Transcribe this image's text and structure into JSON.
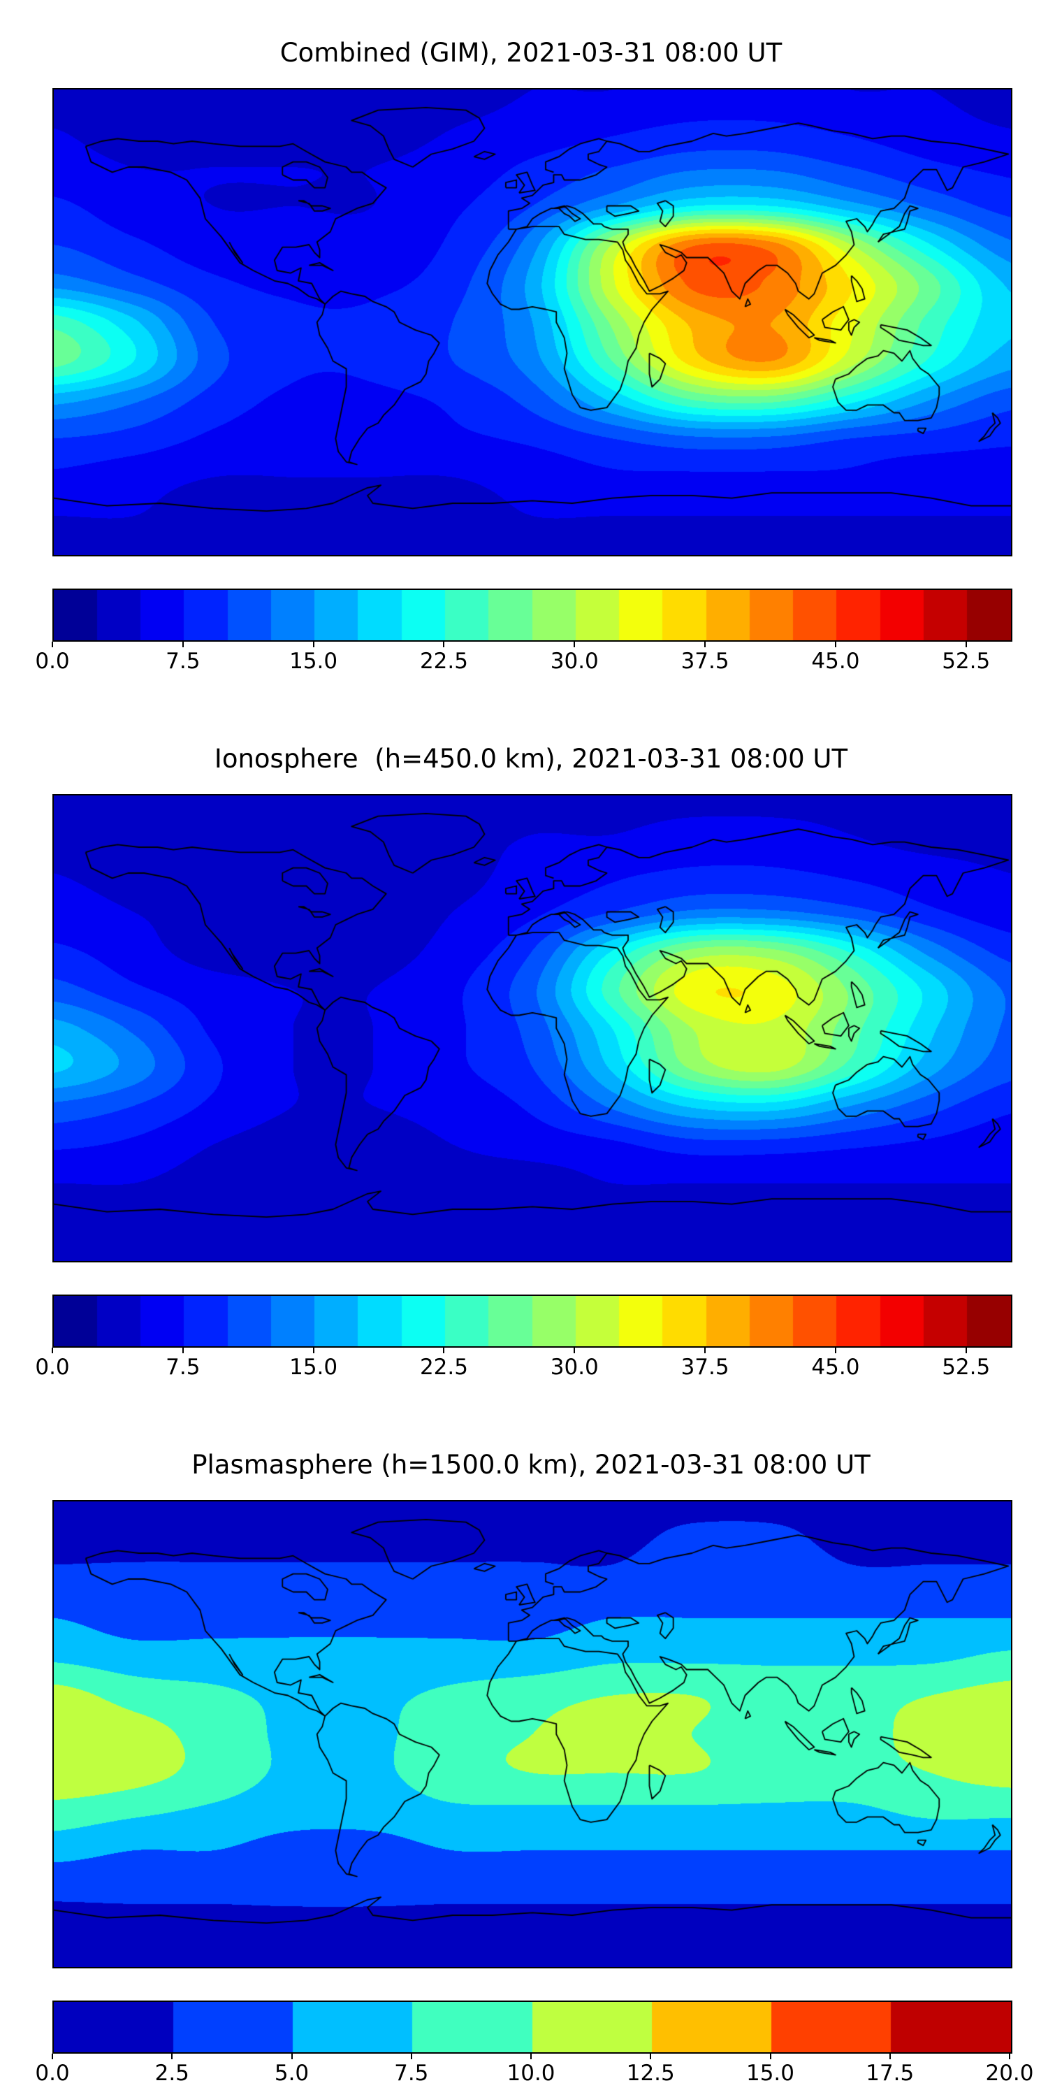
{
  "figure": {
    "background": "#ffffff",
    "colormap": "jet",
    "border_color": "#000000"
  },
  "chart_data": [
    {
      "type": "heatmap",
      "title": "Combined (GIM), 2021-03-31 08:00 UT",
      "projection": "equirectangular-world-map-with-coastlines",
      "lon": [
        -180,
        -150,
        -120,
        -90,
        -60,
        -30,
        0,
        30,
        60,
        90,
        120,
        150,
        180
      ],
      "lat": [
        90,
        75,
        60,
        45,
        30,
        15,
        0,
        -15,
        -30,
        -45,
        -60,
        -75,
        -90
      ],
      "values": [
        [
          4,
          4,
          4,
          4,
          4,
          4,
          5,
          5,
          6,
          6,
          5,
          5,
          4
        ],
        [
          5,
          4,
          4,
          4,
          4,
          5,
          6,
          7,
          8,
          8,
          7,
          6,
          5
        ],
        [
          6,
          5,
          5,
          5,
          5,
          6,
          8,
          10,
          12,
          12,
          10,
          8,
          7
        ],
        [
          8,
          6,
          5,
          5,
          5,
          7,
          10,
          15,
          20,
          20,
          16,
          12,
          9
        ],
        [
          10,
          8,
          6,
          6,
          6,
          8,
          14,
          30,
          42,
          41,
          30,
          20,
          13
        ],
        [
          14,
          11,
          8,
          7,
          7,
          9,
          16,
          32,
          43,
          42,
          35,
          26,
          17
        ],
        [
          24,
          18,
          10,
          8,
          8,
          10,
          15,
          28,
          38,
          40,
          33,
          24,
          18
        ],
        [
          26,
          20,
          11,
          8,
          8,
          10,
          14,
          25,
          36,
          40,
          31,
          22,
          16
        ],
        [
          16,
          13,
          9,
          7,
          7,
          8,
          11,
          18,
          25,
          26,
          21,
          15,
          11
        ],
        [
          10,
          9,
          7,
          6,
          6,
          7,
          8,
          10,
          12,
          12,
          10,
          9,
          8
        ],
        [
          7,
          6,
          5,
          5,
          5,
          5,
          6,
          7,
          7,
          7,
          7,
          6,
          6
        ],
        [
          5,
          5,
          4,
          4,
          4,
          4,
          5,
          5,
          5,
          5,
          5,
          5,
          5
        ],
        [
          4,
          4,
          4,
          4,
          4,
          4,
          4,
          4,
          4,
          4,
          4,
          4,
          4
        ]
      ],
      "levels": {
        "min": 0,
        "max": 55,
        "step": 2.5
      },
      "colorbar_ticks": [
        "0.0",
        "7.5",
        "15.0",
        "22.5",
        "30.0",
        "37.5",
        "45.0",
        "52.5"
      ],
      "colormap": "jet"
    },
    {
      "type": "heatmap",
      "title": "Ionosphere  (h=450.0 km), 2021-03-31 08:00 UT",
      "projection": "equirectangular-world-map-with-coastlines",
      "lon": [
        -180,
        -150,
        -120,
        -90,
        -60,
        -30,
        0,
        30,
        60,
        90,
        120,
        150,
        180
      ],
      "lat": [
        90,
        75,
        60,
        45,
        30,
        15,
        0,
        -15,
        -30,
        -45,
        -60,
        -75,
        -90
      ],
      "values": [
        [
          3,
          3,
          3,
          3,
          3,
          3,
          4,
          4,
          4,
          4,
          4,
          3,
          3
        ],
        [
          4,
          3,
          3,
          3,
          3,
          4,
          5,
          5,
          6,
          6,
          5,
          4,
          4
        ],
        [
          5,
          4,
          3,
          3,
          3,
          4,
          6,
          7,
          8,
          8,
          7,
          6,
          5
        ],
        [
          6,
          5,
          4,
          3,
          3,
          5,
          7,
          10,
          13,
          13,
          11,
          8,
          6
        ],
        [
          8,
          6,
          4,
          4,
          4,
          6,
          10,
          20,
          28,
          28,
          22,
          14,
          9
        ],
        [
          11,
          8,
          6,
          5,
          5,
          7,
          12,
          24,
          34,
          34,
          27,
          19,
          12
        ],
        [
          16,
          12,
          7,
          5,
          5,
          7,
          11,
          20,
          30,
          32,
          26,
          18,
          12
        ],
        [
          18,
          14,
          8,
          5,
          5,
          7,
          10,
          18,
          28,
          31,
          24,
          16,
          11
        ],
        [
          12,
          10,
          7,
          5,
          5,
          6,
          8,
          13,
          18,
          19,
          15,
          11,
          8
        ],
        [
          8,
          7,
          5,
          4,
          4,
          5,
          6,
          7,
          9,
          9,
          8,
          7,
          6
        ],
        [
          5,
          5,
          4,
          4,
          4,
          4,
          4,
          5,
          5,
          5,
          5,
          5,
          5
        ],
        [
          4,
          4,
          3,
          3,
          3,
          3,
          4,
          4,
          4,
          4,
          4,
          4,
          4
        ],
        [
          3,
          3,
          3,
          3,
          3,
          3,
          3,
          3,
          3,
          3,
          3,
          3,
          3
        ]
      ],
      "levels": {
        "min": 0,
        "max": 55,
        "step": 2.5
      },
      "colorbar_ticks": [
        "0.0",
        "7.5",
        "15.0",
        "22.5",
        "30.0",
        "37.5",
        "45.0",
        "52.5"
      ],
      "colormap": "jet"
    },
    {
      "type": "heatmap",
      "title": "Plasmasphere (h=1500.0 km), 2021-03-31 08:00 UT",
      "projection": "equirectangular-world-map-with-coastlines",
      "lon": [
        -180,
        -150,
        -120,
        -90,
        -60,
        -30,
        0,
        30,
        60,
        90,
        120,
        150,
        180
      ],
      "lat": [
        90,
        75,
        60,
        45,
        30,
        15,
        0,
        -15,
        -30,
        -45,
        -60,
        -75,
        -90
      ],
      "values": [
        [
          2,
          2,
          2,
          2,
          2,
          2,
          2,
          2,
          2,
          2,
          2,
          2,
          2
        ],
        [
          2,
          2,
          2,
          2,
          2,
          2,
          2,
          2,
          3,
          3,
          2,
          2,
          2
        ],
        [
          3,
          3,
          3,
          3,
          3,
          3,
          3,
          3,
          4,
          4,
          3,
          3,
          3
        ],
        [
          5,
          4,
          4,
          4,
          4,
          4,
          4,
          5,
          5,
          5,
          5,
          5,
          5
        ],
        [
          7,
          6,
          6,
          6,
          6,
          6,
          6,
          7,
          7,
          7,
          7,
          7,
          8
        ],
        [
          11,
          9,
          8,
          7,
          7,
          8,
          9,
          10,
          10,
          9,
          9,
          10,
          11
        ],
        [
          12,
          11,
          9,
          7,
          7,
          9,
          10,
          11,
          10,
          9,
          9,
          11,
          12
        ],
        [
          12,
          11,
          9,
          7,
          7,
          9,
          10,
          10,
          10,
          9,
          9,
          10,
          11
        ],
        [
          9,
          8,
          7,
          6,
          6,
          7,
          7,
          7,
          7,
          7,
          7,
          8,
          8
        ],
        [
          6,
          5,
          5,
          4,
          4,
          5,
          5,
          5,
          5,
          5,
          5,
          5,
          5
        ],
        [
          3,
          3,
          3,
          3,
          3,
          3,
          3,
          3,
          3,
          3,
          3,
          3,
          3
        ],
        [
          2,
          2,
          2,
          2,
          2,
          2,
          2,
          2,
          2,
          2,
          2,
          2,
          2
        ],
        [
          2,
          2,
          2,
          2,
          2,
          2,
          2,
          2,
          2,
          2,
          2,
          2,
          2
        ]
      ],
      "levels": {
        "min": 0,
        "max": 20,
        "step": 2.5
      },
      "colorbar_ticks": [
        "0.0",
        "2.5",
        "5.0",
        "7.5",
        "10.0",
        "12.5",
        "15.0",
        "17.5",
        "20.0"
      ],
      "colormap": "jet"
    }
  ]
}
